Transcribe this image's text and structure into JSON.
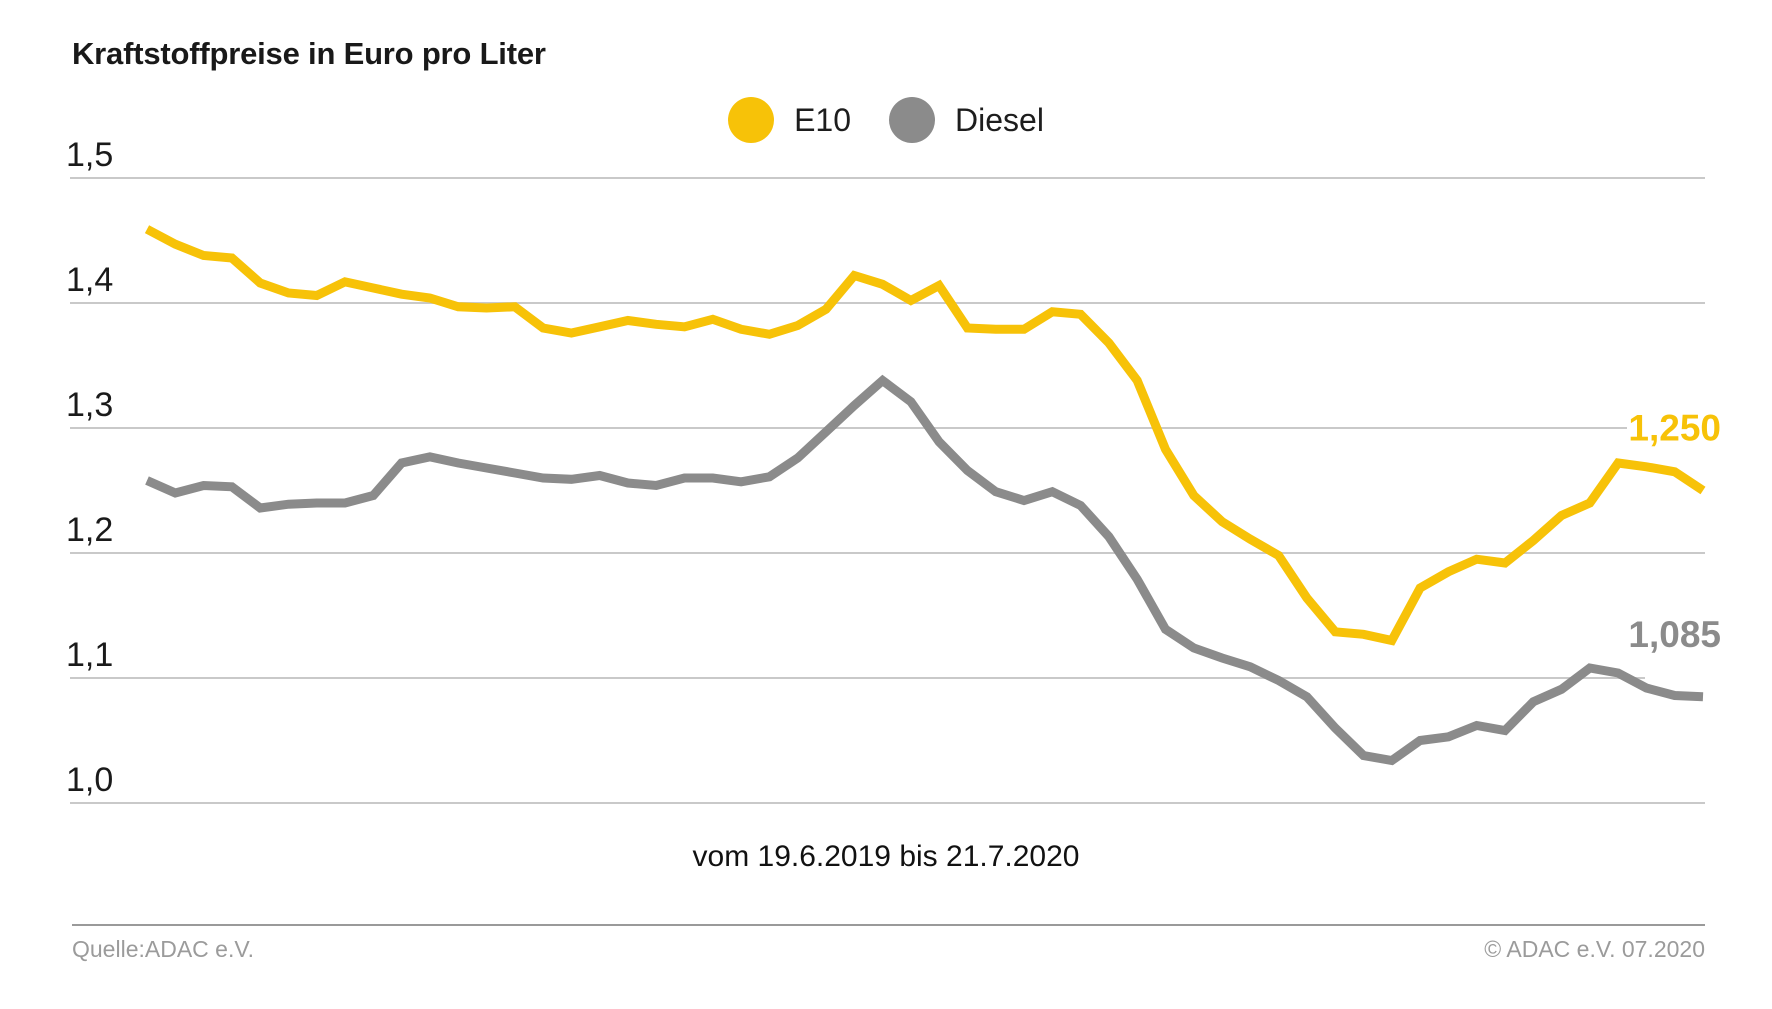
{
  "title": "Kraftstoffpreise in Euro pro Liter",
  "legend": {
    "items": [
      {
        "id": "e10",
        "label": "E10",
        "color": "#F7C208"
      },
      {
        "id": "diesel",
        "label": "Diesel",
        "color": "#8B8B8B"
      }
    ]
  },
  "caption": "vom 19.6.2019 bis 21.7.2020",
  "footer": {
    "source": "Quelle:ADAC e.V.",
    "copyright": "© ADAC e.V. 07.2020"
  },
  "chart_data": {
    "type": "line",
    "title": "Kraftstoffpreise in Euro pro Liter",
    "xlabel": "vom 19.6.2019 bis 21.7.2020",
    "x_start": "19.6.2019",
    "x_end": "21.7.2020",
    "ylabel": "Euro pro Liter",
    "ylim": [
      1.0,
      1.5
    ],
    "grid": true,
    "legend_position": "top-center",
    "gridline_color": "#C9C9C9",
    "y_ticks": [
      {
        "label": "1,5",
        "value": 1.5
      },
      {
        "label": "1,4",
        "value": 1.4
      },
      {
        "label": "1,3",
        "value": 1.3
      },
      {
        "label": "1,2",
        "value": 1.2
      },
      {
        "label": "1,1",
        "value": 1.1
      },
      {
        "label": "1,0",
        "value": 1.0
      }
    ],
    "series": [
      {
        "name": "E10",
        "color": "#F7C208",
        "end_label": "1,250",
        "final_value": 1.25,
        "values": [
          1.459,
          1.447,
          1.438,
          1.436,
          1.416,
          1.408,
          1.406,
          1.417,
          1.412,
          1.407,
          1.404,
          1.397,
          1.396,
          1.397,
          1.38,
          1.376,
          1.381,
          1.386,
          1.383,
          1.381,
          1.387,
          1.379,
          1.375,
          1.382,
          1.395,
          1.422,
          1.415,
          1.402,
          1.414,
          1.38,
          1.379,
          1.379,
          1.393,
          1.391,
          1.368,
          1.338,
          1.283,
          1.246,
          1.225,
          1.211,
          1.198,
          1.164,
          1.137,
          1.135,
          1.13,
          1.172,
          1.185,
          1.195,
          1.192,
          1.21,
          1.23,
          1.24,
          1.272,
          1.269,
          1.265,
          1.25
        ]
      },
      {
        "name": "Diesel",
        "color": "#8B8B8B",
        "end_label": "1,085",
        "final_value": 1.085,
        "values": [
          1.258,
          1.248,
          1.254,
          1.253,
          1.236,
          1.239,
          1.24,
          1.24,
          1.246,
          1.272,
          1.277,
          1.272,
          1.268,
          1.264,
          1.26,
          1.259,
          1.262,
          1.256,
          1.254,
          1.26,
          1.26,
          1.257,
          1.261,
          1.276,
          1.297,
          1.318,
          1.338,
          1.321,
          1.289,
          1.266,
          1.249,
          1.242,
          1.249,
          1.238,
          1.213,
          1.179,
          1.139,
          1.124,
          1.116,
          1.109,
          1.098,
          1.085,
          1.06,
          1.038,
          1.034,
          1.05,
          1.053,
          1.062,
          1.058,
          1.081,
          1.091,
          1.108,
          1.104,
          1.092,
          1.086,
          1.085
        ]
      }
    ]
  }
}
